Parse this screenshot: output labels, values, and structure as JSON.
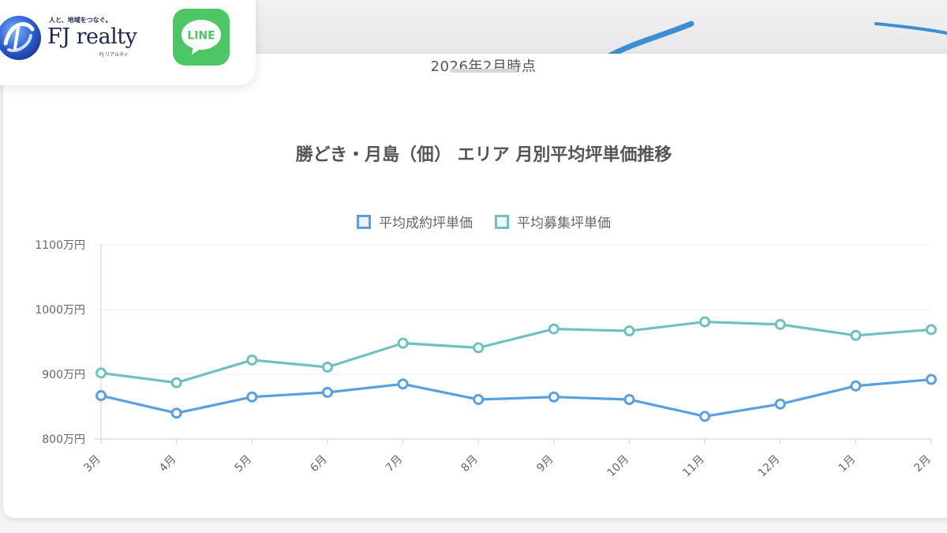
{
  "header": {
    "logo_tagline": "人と、地域をつなぐ。",
    "logo_name": "FJ realty",
    "logo_sub": "FJ リアルティ",
    "line_label": "LINE",
    "colors": {
      "line_green": "#4cc764",
      "logo_navy": "#1b2550",
      "logo_blue": "#2a5fd0"
    }
  },
  "page": {
    "date_note": "2026年2月時点"
  },
  "chart_data": {
    "type": "line",
    "title": "勝どき・月島（佃） エリア 月別平均坪単価推移",
    "categories": [
      "3月",
      "4月",
      "5月",
      "6月",
      "7月",
      "8月",
      "9月",
      "10月",
      "11月",
      "12月",
      "1月",
      "2月"
    ],
    "series": [
      {
        "name": "平均成約坪単価",
        "color": "#5aa0e0",
        "values": [
          867,
          840,
          865,
          872,
          885,
          861,
          865,
          861,
          835,
          854,
          882,
          892
        ]
      },
      {
        "name": "平均募集坪単価",
        "color": "#6fc1bf",
        "values": [
          902,
          887,
          922,
          911,
          948,
          941,
          970,
          967,
          981,
          977,
          960,
          969
        ]
      }
    ],
    "ylim": [
      800,
      1100
    ],
    "y_ticks": [
      {
        "value": 800,
        "label": "800万円"
      },
      {
        "value": 900,
        "label": "900万円"
      },
      {
        "value": 1000,
        "label": "1000万円"
      },
      {
        "value": 1100,
        "label": "1100万円"
      }
    ],
    "grid": true,
    "legend_position": "top"
  }
}
